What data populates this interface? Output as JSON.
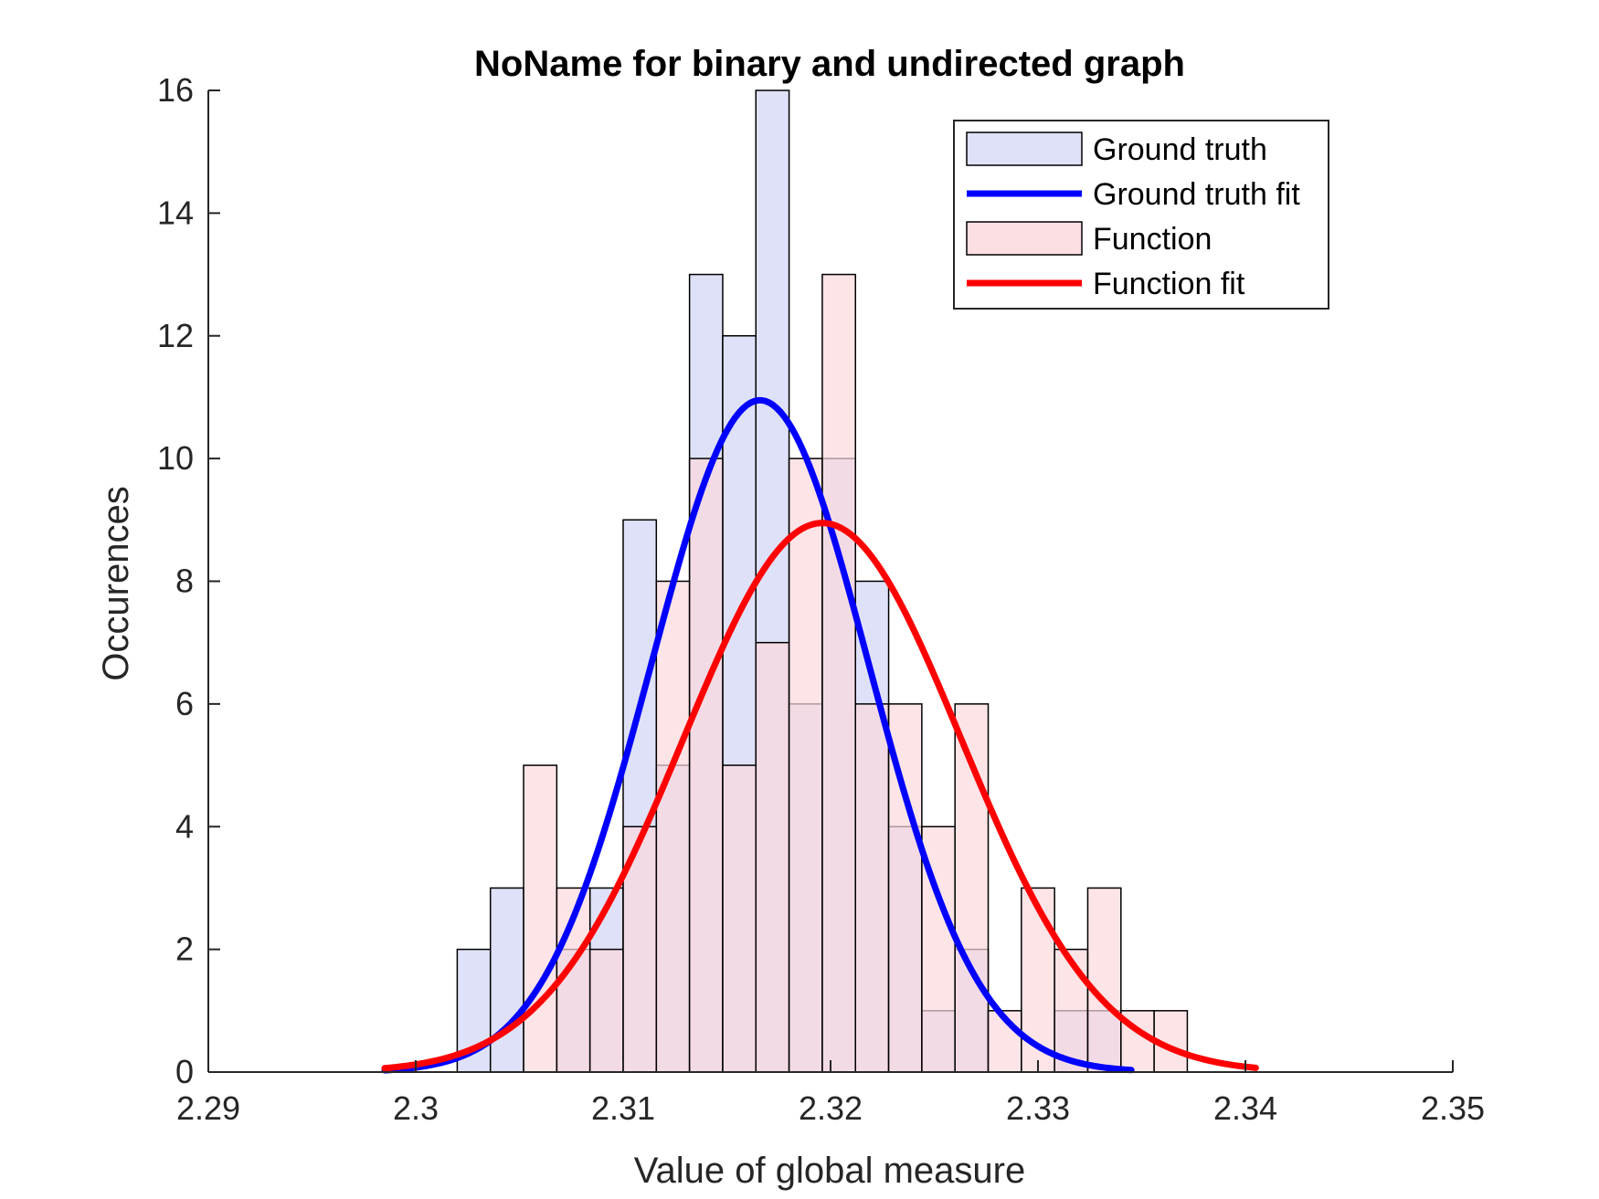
{
  "chart_data": {
    "type": "bar",
    "title": "NoName for binary and undirected graph",
    "xlabel": "Value of global measure",
    "ylabel": "Occurences",
    "xlim": [
      2.29,
      2.35
    ],
    "ylim": [
      0,
      16
    ],
    "xticks": [
      "2.29",
      "2.3",
      "2.31",
      "2.32",
      "2.33",
      "2.34",
      "2.35"
    ],
    "yticks": [
      "0",
      "2",
      "4",
      "6",
      "8",
      "10",
      "12",
      "14",
      "16"
    ],
    "bin_width": 0.0016,
    "grid": false,
    "legend": {
      "placement": "top-right",
      "entries": [
        {
          "label": "Ground truth",
          "kind": "patch"
        },
        {
          "label": "Ground truth fit",
          "kind": "line"
        },
        {
          "label": "Function",
          "kind": "patch"
        },
        {
          "label": "Function fit",
          "kind": "line"
        }
      ]
    },
    "series": [
      {
        "name": "Ground truth",
        "type": "histogram",
        "color": "#d9dcf7",
        "bins_start": [
          2.302,
          2.3036,
          2.3052,
          2.3068,
          2.3084,
          2.31,
          2.3116,
          2.3132,
          2.3148,
          2.3164,
          2.318,
          2.3196,
          2.3212,
          2.3228,
          2.3244,
          2.326,
          2.3276,
          2.3292,
          2.3308,
          2.3324,
          2.334
        ],
        "counts": [
          2,
          3,
          0,
          2,
          3,
          9,
          5,
          13,
          12,
          16,
          6,
          10,
          8,
          4,
          1,
          2,
          0,
          0,
          1,
          1,
          0
        ]
      },
      {
        "name": "Function",
        "type": "histogram",
        "color": "#fbd9dd",
        "bins_start": [
          2.3052,
          2.3068,
          2.3084,
          2.31,
          2.3116,
          2.3132,
          2.3148,
          2.3164,
          2.318,
          2.3196,
          2.3212,
          2.3228,
          2.3244,
          2.326,
          2.3276,
          2.3292,
          2.3308,
          2.3324,
          2.334,
          2.3356
        ],
        "counts": [
          5,
          3,
          2,
          4,
          8,
          10,
          5,
          7,
          10,
          13,
          6,
          6,
          4,
          6,
          1,
          3,
          2,
          3,
          1,
          1
        ]
      },
      {
        "name": "Ground truth fit",
        "type": "line",
        "color": "#0000ff",
        "x_range": [
          2.2985,
          2.3345
        ],
        "mean": 2.3166,
        "std": 0.00525,
        "peak": 10.95
      },
      {
        "name": "Function fit",
        "type": "line",
        "color": "#ff0000",
        "x_range": [
          2.2985,
          2.3405
        ],
        "mean": 2.3196,
        "std": 0.0067,
        "peak": 8.95
      }
    ]
  }
}
